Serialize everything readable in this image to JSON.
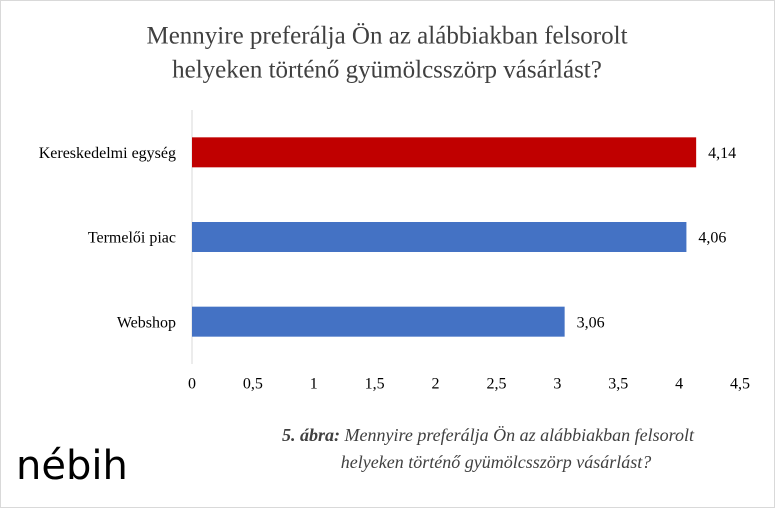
{
  "chart_data": {
    "type": "hbar",
    "title": [
      "Mennyire preferálja Ön az alábbiakban felsorolt",
      "helyeken történő gyümölcsszörp vásárlást?"
    ],
    "categories": [
      "Kereskedelmi egység",
      "Termelői piac",
      "Webshop"
    ],
    "values": [
      4.14,
      4.06,
      3.06
    ],
    "value_labels": [
      "4,14",
      "4,06",
      "3,06"
    ],
    "colors": [
      "#c00000",
      "#4472c4",
      "#4472c4"
    ],
    "xlim": [
      0,
      4.5
    ],
    "xticks": [
      0,
      {
        "value": 0.5,
        "label": "0,5"
      },
      1,
      {
        "value": 1.5,
        "label": "1,5"
      },
      2,
      {
        "value": 2.5,
        "label": "2,5"
      },
      3,
      {
        "value": 3.5,
        "label": "3,5"
      },
      4,
      {
        "value": 4.5,
        "label": "4,5"
      }
    ],
    "grid": false,
    "caption": {
      "label": "5. ábra:",
      "text": [
        "Mennyire preferálja Ön az alábbiakban felsorolt",
        "helyeken történő gyümölcsszörp vásárlást?"
      ]
    },
    "logo": "nébih"
  }
}
